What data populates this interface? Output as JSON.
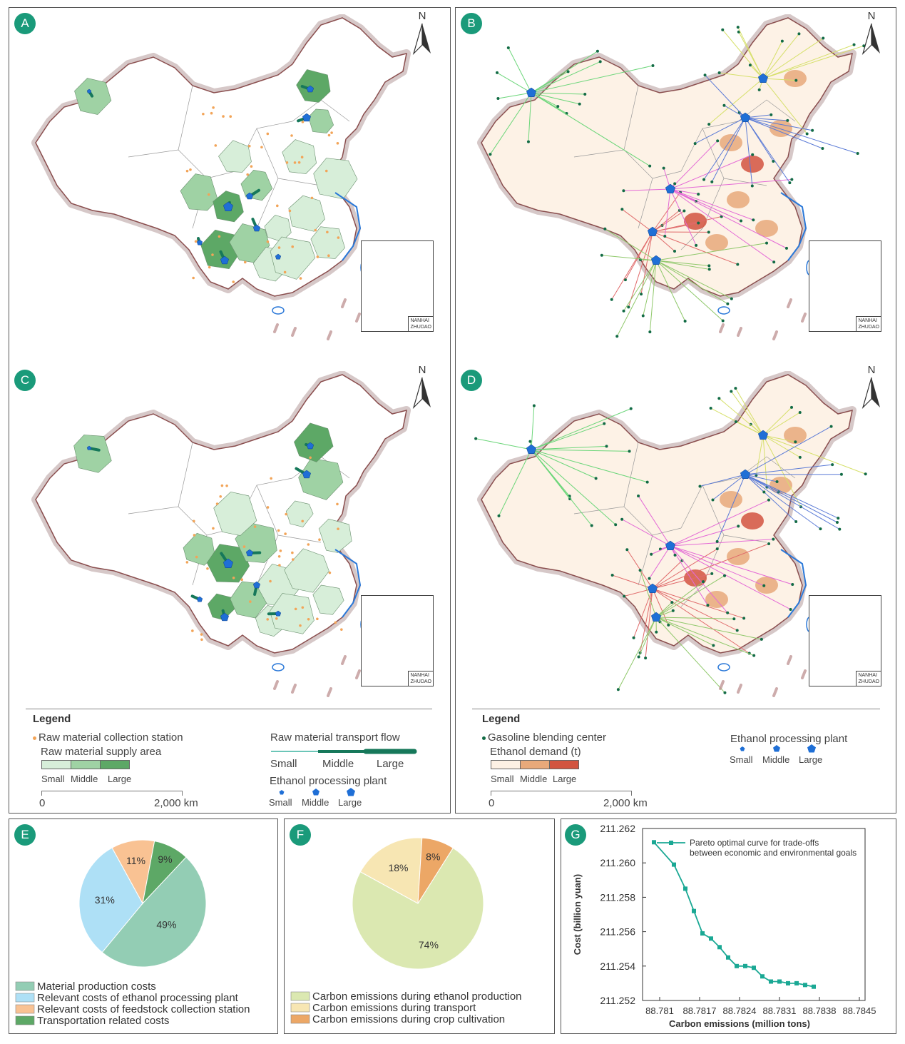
{
  "panels": {
    "a": "A",
    "b": "B",
    "c": "C",
    "d": "D",
    "e": "E",
    "f": "F",
    "g": "G"
  },
  "north_label": "N",
  "inset_label_1": "NANHAI",
  "inset_label_2": "ZHUDAO",
  "legend_left": {
    "title": "Legend",
    "collection_station": "Raw material collection station",
    "supply_area": "Raw material supply area",
    "supply_small": "Small",
    "supply_middle": "Middle",
    "supply_large": "Large",
    "transport_flow": "Raw material transport flow",
    "flow_small": "Small",
    "flow_middle": "Middle",
    "flow_large": "Large",
    "plant": "Ethanol processing plant",
    "plant_small": "Small",
    "plant_middle": "Middle",
    "plant_large": "Large",
    "scale_zero": "0",
    "scale_end": "2,000 km",
    "supply_colors": [
      "#d7eed9",
      "#9fd2a4",
      "#5da866"
    ]
  },
  "legend_right": {
    "title": "Legend",
    "blending_center": "Gasoline blending center",
    "ethanol_demand": "Ethanol demand (t)",
    "demand_small": "Small",
    "demand_middle": "Middle",
    "demand_large": "Large",
    "plant": "Ethanol processing plant",
    "plant_small": "Small",
    "plant_middle": "Middle",
    "plant_large": "Large",
    "scale_zero": "0",
    "scale_end": "2,000 km",
    "demand_colors": [
      "#fdf1e4",
      "#e8a97a",
      "#d25440"
    ]
  },
  "chart_data": [
    {
      "id": "E",
      "type": "pie",
      "slices": [
        {
          "label": "Material production costs",
          "value": 49,
          "text": "49%",
          "color": "#93cdb4"
        },
        {
          "label": "Relevant costs of ethanol processing plant",
          "value": 31,
          "text": "31%",
          "color": "#aee0f6"
        },
        {
          "label": "Relevant costs of feedstock collection station",
          "value": 11,
          "text": "11%",
          "color": "#f9c293"
        },
        {
          "label": "Transportation related costs",
          "value": 9,
          "text": "9%",
          "color": "#5da866"
        }
      ]
    },
    {
      "id": "F",
      "type": "pie",
      "slices": [
        {
          "label": "Carbon emissions during ethanol production",
          "value": 74,
          "text": "74%",
          "color": "#dbe8b1"
        },
        {
          "label": "Carbon emissions during transport",
          "value": 18,
          "text": "18%",
          "color": "#f7e6b3"
        },
        {
          "label": "Carbon emissions during crop cultivation",
          "value": 8,
          "text": "8%",
          "color": "#eca766"
        }
      ]
    },
    {
      "id": "G",
      "type": "line",
      "series_name_1": "Pareto optimal curve for trade-offs",
      "series_name_2": "between economic and environmental goals",
      "color": "#1aa894",
      "xlabel": "Carbon emissions (million tons)",
      "ylabel": "Cost (billion yuan)",
      "xlim": [
        88.7807,
        88.7846
      ],
      "ylim": [
        211.252,
        211.262
      ],
      "xticks": [
        88.781,
        88.7817,
        88.7824,
        88.7831,
        88.7838,
        88.7845
      ],
      "xtick_labels": [
        "88.781",
        "88.7817",
        "88.7824",
        "88.7831",
        "88.7838",
        "88.7845"
      ],
      "yticks": [
        211.252,
        211.254,
        211.256,
        211.258,
        211.26,
        211.262
      ],
      "ytick_labels": [
        "211.252",
        "211.254",
        "211.256",
        "211.258",
        "211.260",
        "211.262"
      ],
      "x": [
        88.7809,
        88.78125,
        88.78145,
        88.7816,
        88.78175,
        88.7819,
        88.78205,
        88.7822,
        88.78235,
        88.7825,
        88.78265,
        88.7828,
        88.78295,
        88.7831,
        88.78325,
        88.7834,
        88.78355,
        88.7837
      ],
      "y": [
        211.2612,
        211.2599,
        211.2585,
        211.2572,
        211.2559,
        211.2556,
        211.2551,
        211.2545,
        211.254,
        211.254,
        211.2539,
        211.2534,
        211.2531,
        211.2531,
        211.253,
        211.253,
        211.2529,
        211.2528
      ]
    }
  ]
}
